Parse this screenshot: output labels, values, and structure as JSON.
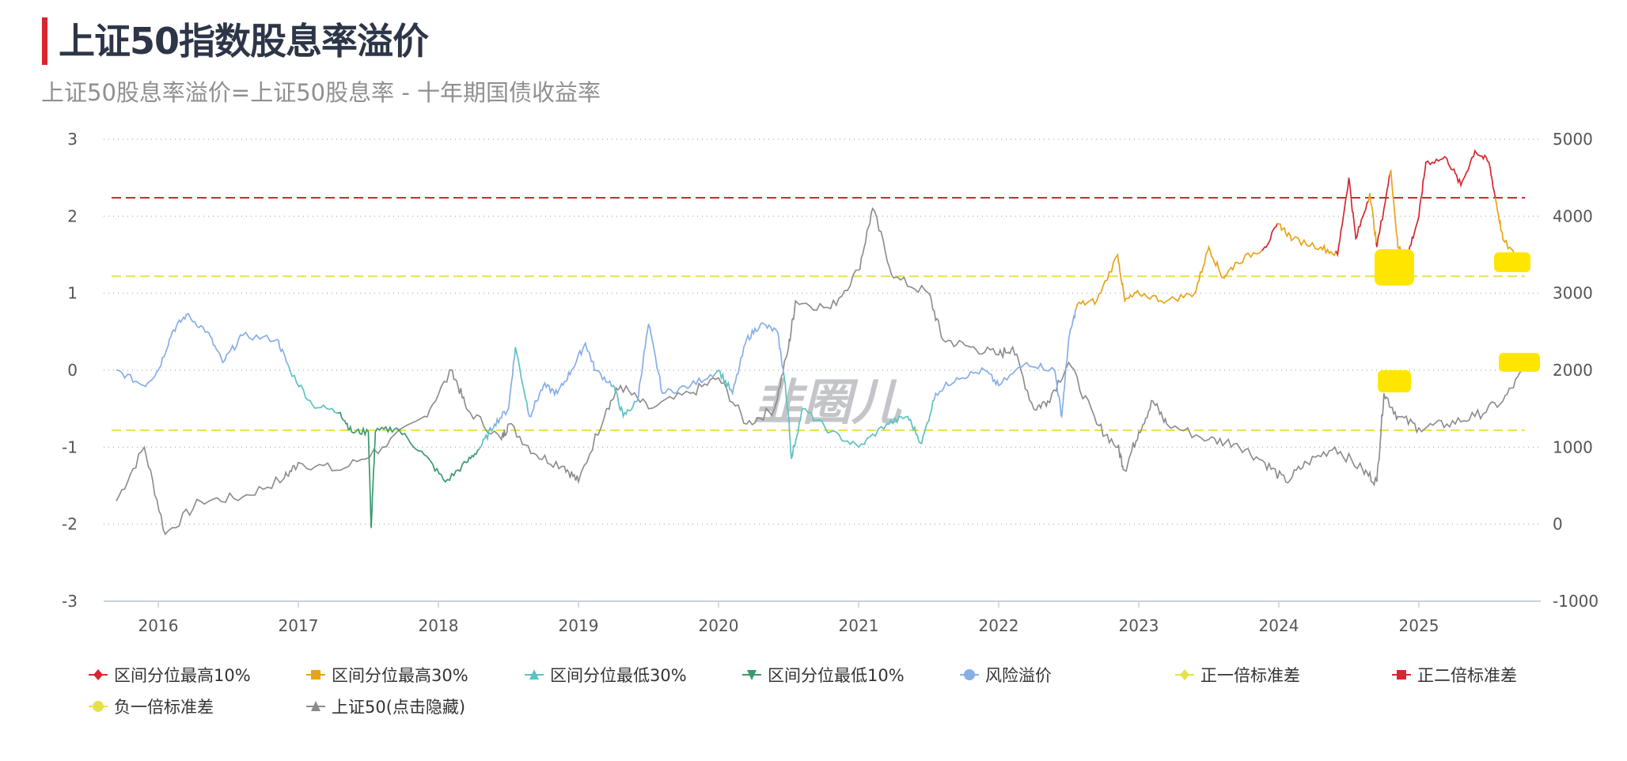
{
  "header": {
    "title": "上证50指数股息率溢价",
    "subtitle": "上证50股息率溢价=上证50股息率 - 十年期国债收益率"
  },
  "watermark": "韭圈儿",
  "chart_data": {
    "type": "line",
    "title": "上证50指数股息率溢价",
    "left_axis": {
      "range": [
        -3,
        3
      ],
      "ticks": [
        "-3",
        "-2",
        "-1",
        "0",
        "1",
        "2",
        "3"
      ]
    },
    "right_axis": {
      "range": [
        -1000,
        5000
      ],
      "ticks": [
        "-1000",
        "0",
        "1000",
        "2000",
        "3000",
        "4000",
        "5000"
      ]
    },
    "x_ticks": [
      "2016",
      "2017",
      "2018",
      "2019",
      "2020",
      "2021",
      "2022",
      "2023",
      "2024",
      "2025"
    ],
    "x_range": [
      2015.7,
      2025.75
    ],
    "grid": "horizontal dotted",
    "legend_placement": "bottom",
    "colors": {
      "top10": "#d7262f",
      "top30": "#e8a418",
      "low30": "#5cc2c2",
      "low10": "#3a9a6e",
      "premium": "#86aee8",
      "plus1sd": "#e8e04a",
      "plus2sd": "#d7262f",
      "minus1sd": "#e8e04a",
      "sse50": "#8a8a8a"
    },
    "reference_lines": {
      "plus2sd": 2.24,
      "plus1sd": 1.22,
      "minus1sd": -0.78
    },
    "legend": [
      {
        "key": "top10",
        "label": "区间分位最高10%",
        "marker": "diamond"
      },
      {
        "key": "top30",
        "label": "区间分位最高30%",
        "marker": "square"
      },
      {
        "key": "low30",
        "label": "区间分位最低30%",
        "marker": "triangle"
      },
      {
        "key": "low10",
        "label": "区间分位最低10%",
        "marker": "triangle-down"
      },
      {
        "key": "premium",
        "label": "风险溢价",
        "marker": "circle"
      },
      {
        "key": "plus1sd",
        "label": "正一倍标准差",
        "marker": "diamond"
      },
      {
        "key": "plus2sd",
        "label": "正二倍标准差",
        "marker": "square"
      },
      {
        "key": "minus1sd",
        "label": "负一倍标准差",
        "marker": "circle"
      },
      {
        "key": "sse50",
        "label": "上证50(点击隐藏)",
        "marker": "triangle"
      }
    ],
    "premium_series": [
      [
        2015.7,
        0.0,
        "premium"
      ],
      [
        2015.9,
        -0.2,
        "premium"
      ],
      [
        2016.0,
        0.0,
        "premium"
      ],
      [
        2016.1,
        0.5,
        "premium"
      ],
      [
        2016.2,
        0.72,
        "premium"
      ],
      [
        2016.35,
        0.5,
        "premium"
      ],
      [
        2016.46,
        0.1,
        "premium"
      ],
      [
        2016.6,
        0.45,
        "premium"
      ],
      [
        2016.85,
        0.4,
        "premium"
      ],
      [
        2016.94,
        0.0,
        "premium"
      ],
      [
        2017.1,
        -0.45,
        "low30"
      ],
      [
        2017.3,
        -0.55,
        "low30"
      ],
      [
        2017.38,
        -0.8,
        "low10"
      ],
      [
        2017.5,
        -0.8,
        "low10"
      ],
      [
        2017.52,
        -2.05,
        "low10"
      ],
      [
        2017.55,
        -0.8,
        "low10"
      ],
      [
        2017.7,
        -0.75,
        "low10"
      ],
      [
        2017.9,
        -1.1,
        "low10"
      ],
      [
        2018.05,
        -1.45,
        "low10"
      ],
      [
        2018.2,
        -1.2,
        "low10"
      ],
      [
        2018.3,
        -1.0,
        "low10"
      ],
      [
        2018.4,
        -0.7,
        "low30"
      ],
      [
        2018.5,
        -0.5,
        "premium"
      ],
      [
        2018.55,
        0.3,
        "premium"
      ],
      [
        2018.65,
        -0.6,
        "low30"
      ],
      [
        2018.75,
        -0.2,
        "premium"
      ],
      [
        2018.85,
        -0.3,
        "premium"
      ],
      [
        2018.95,
        0.0,
        "premium"
      ],
      [
        2019.05,
        0.35,
        "premium"
      ],
      [
        2019.12,
        0.0,
        "premium"
      ],
      [
        2019.25,
        -0.2,
        "premium"
      ],
      [
        2019.32,
        -0.6,
        "low30"
      ],
      [
        2019.42,
        -0.4,
        "low30"
      ],
      [
        2019.5,
        0.6,
        "premium"
      ],
      [
        2019.6,
        -0.3,
        "premium"
      ],
      [
        2019.8,
        -0.2,
        "premium"
      ],
      [
        2020.0,
        0.0,
        "premium"
      ],
      [
        2020.1,
        -0.3,
        "low30"
      ],
      [
        2020.2,
        0.4,
        "premium"
      ],
      [
        2020.3,
        0.6,
        "premium"
      ],
      [
        2020.42,
        0.5,
        "premium"
      ],
      [
        2020.47,
        -0.1,
        "premium"
      ],
      [
        2020.5,
        -0.6,
        "low30"
      ],
      [
        2020.52,
        -1.15,
        "low30"
      ],
      [
        2020.6,
        -0.5,
        "low30"
      ],
      [
        2020.8,
        -0.8,
        "low30"
      ],
      [
        2021.0,
        -1.0,
        "low30"
      ],
      [
        2021.2,
        -0.7,
        "low30"
      ],
      [
        2021.35,
        -0.6,
        "low30"
      ],
      [
        2021.45,
        -0.95,
        "low30"
      ],
      [
        2021.55,
        -0.3,
        "low30"
      ],
      [
        2021.7,
        -0.1,
        "premium"
      ],
      [
        2021.9,
        0.0,
        "premium"
      ],
      [
        2022.0,
        -0.2,
        "premium"
      ],
      [
        2022.2,
        0.1,
        "premium"
      ],
      [
        2022.4,
        0.0,
        "premium"
      ],
      [
        2022.45,
        -0.6,
        "premium"
      ],
      [
        2022.5,
        0.4,
        "premium"
      ],
      [
        2022.56,
        0.85,
        "premium"
      ],
      [
        2022.7,
        0.9,
        "top30"
      ],
      [
        2022.85,
        1.5,
        "top30"
      ],
      [
        2022.9,
        0.9,
        "top30"
      ],
      [
        2023.0,
        1.0,
        "top30"
      ],
      [
        2023.2,
        0.9,
        "top30"
      ],
      [
        2023.4,
        1.0,
        "top30"
      ],
      [
        2023.5,
        1.6,
        "top30"
      ],
      [
        2023.6,
        1.2,
        "top30"
      ],
      [
        2023.7,
        1.4,
        "top30"
      ],
      [
        2023.9,
        1.6,
        "top30"
      ],
      [
        2024.0,
        1.9,
        "top10"
      ],
      [
        2024.1,
        1.7,
        "top30"
      ],
      [
        2024.3,
        1.6,
        "top30"
      ],
      [
        2024.42,
        1.5,
        "top30"
      ],
      [
        2024.5,
        2.5,
        "top10"
      ],
      [
        2024.55,
        1.7,
        "top10"
      ],
      [
        2024.65,
        2.3,
        "top10"
      ],
      [
        2024.7,
        1.6,
        "top30"
      ],
      [
        2024.8,
        2.6,
        "top10"
      ],
      [
        2024.85,
        1.6,
        "top30"
      ],
      [
        2024.92,
        1.5,
        "top30"
      ],
      [
        2025.0,
        2.0,
        "top10"
      ],
      [
        2025.05,
        2.7,
        "top10"
      ],
      [
        2025.2,
        2.75,
        "top10"
      ],
      [
        2025.3,
        2.4,
        "top10"
      ],
      [
        2025.4,
        2.85,
        "top10"
      ],
      [
        2025.5,
        2.7,
        "top10"
      ],
      [
        2025.55,
        2.2,
        "top10"
      ],
      [
        2025.6,
        1.7,
        "top30"
      ],
      [
        2025.72,
        1.4,
        "top30"
      ]
    ],
    "sse50_series": [
      [
        2015.7,
        300
      ],
      [
        2015.9,
        1000
      ],
      [
        2016.05,
        -130
      ],
      [
        2016.3,
        300
      ],
      [
        2016.6,
        350
      ],
      [
        2016.9,
        600
      ],
      [
        2017.0,
        800
      ],
      [
        2017.3,
        700
      ],
      [
        2017.6,
        1000
      ],
      [
        2017.9,
        1400
      ],
      [
        2018.1,
        2000
      ],
      [
        2018.2,
        1500
      ],
      [
        2018.45,
        1100
      ],
      [
        2018.5,
        1300
      ],
      [
        2018.7,
        900
      ],
      [
        2018.9,
        750
      ],
      [
        2019.0,
        550
      ],
      [
        2019.2,
        1500
      ],
      [
        2019.3,
        1800
      ],
      [
        2019.5,
        1500
      ],
      [
        2019.8,
        1700
      ],
      [
        2020.0,
        1900
      ],
      [
        2020.2,
        1300
      ],
      [
        2020.4,
        1500
      ],
      [
        2020.5,
        2300
      ],
      [
        2020.55,
        2900
      ],
      [
        2020.8,
        2800
      ],
      [
        2021.0,
        3300
      ],
      [
        2021.1,
        4100
      ],
      [
        2021.25,
        3200
      ],
      [
        2021.5,
        3000
      ],
      [
        2021.6,
        2400
      ],
      [
        2021.8,
        2300
      ],
      [
        2022.0,
        2200
      ],
      [
        2022.1,
        2300
      ],
      [
        2022.25,
        1500
      ],
      [
        2022.35,
        1600
      ],
      [
        2022.5,
        2100
      ],
      [
        2022.7,
        1300
      ],
      [
        2022.85,
        1000
      ],
      [
        2022.9,
        700
      ],
      [
        2023.0,
        1200
      ],
      [
        2023.1,
        1600
      ],
      [
        2023.2,
        1300
      ],
      [
        2023.5,
        1100
      ],
      [
        2023.7,
        1050
      ],
      [
        2023.9,
        800
      ],
      [
        2024.05,
        550
      ],
      [
        2024.2,
        800
      ],
      [
        2024.4,
        1000
      ],
      [
        2024.6,
        700
      ],
      [
        2024.7,
        550
      ],
      [
        2024.75,
        1700
      ],
      [
        2024.85,
        1400
      ],
      [
        2025.0,
        1250
      ],
      [
        2025.2,
        1300
      ],
      [
        2025.4,
        1400
      ],
      [
        2025.6,
        1600
      ],
      [
        2025.75,
        2000
      ]
    ]
  }
}
